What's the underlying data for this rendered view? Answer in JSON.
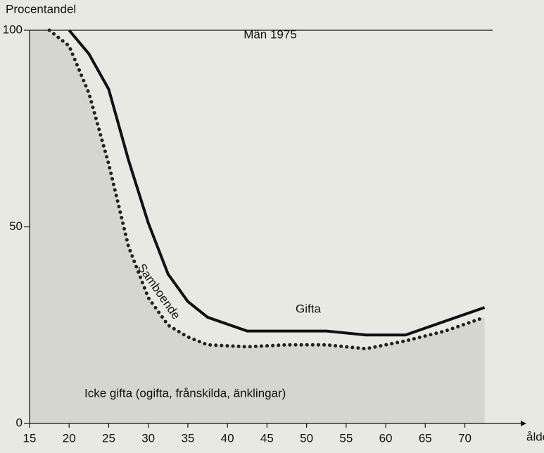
{
  "chart_data": {
    "type": "line",
    "title": "Män 1975",
    "y_label": "Procentandel",
    "x_label": "ålder",
    "annotations": [
      "Gifta",
      "Samboende",
      "Icke gifta (ogifta, frånskilda, änklingar)"
    ],
    "x": [
      17.5,
      20,
      22.5,
      25,
      27.5,
      30,
      32.5,
      35,
      37.5,
      42.5,
      47.5,
      52.5,
      57.5,
      62.5,
      67.5,
      72.5
    ],
    "series": [
      {
        "name": "Gifta",
        "color": "#111111",
        "style": "solid",
        "values": [
          null,
          100,
          94,
          85,
          67,
          51,
          38,
          31,
          27,
          23.5,
          23.5,
          23.5,
          22.5,
          22.5,
          26,
          29.5
        ]
      },
      {
        "name": "Samboende",
        "color": "#222222",
        "style": "dotted",
        "values": [
          100,
          96,
          84,
          66,
          45,
          32,
          25,
          22,
          20,
          19.5,
          20,
          20,
          19,
          21,
          23.5,
          27
        ]
      }
    ],
    "xlim": [
      15,
      76
    ],
    "ylim": [
      0,
      100
    ],
    "xticks": [
      15,
      20,
      25,
      30,
      35,
      40,
      45,
      50,
      55,
      60,
      65,
      70
    ],
    "yticks": [
      0,
      50,
      100
    ],
    "shade_color": "#d6d6d1"
  }
}
